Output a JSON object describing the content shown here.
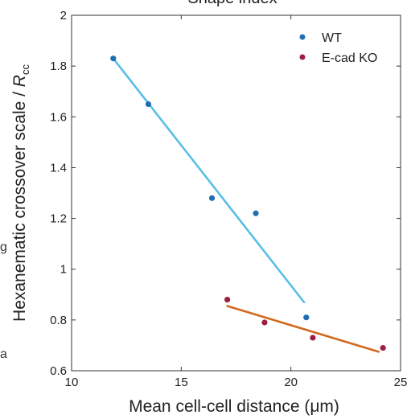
{
  "chart_data": {
    "type": "scatter",
    "title": "Shape index",
    "xlabel": "Mean cell-cell distance (μm)",
    "ylabel_main": "Hexanematic crossover scale / ",
    "ylabel_var": "R",
    "ylabel_sub": "cc",
    "xlim": [
      10,
      25
    ],
    "ylim": [
      0.6,
      2
    ],
    "x_ticks": [
      10,
      15,
      20,
      25
    ],
    "y_ticks": [
      0.6,
      0.8,
      1,
      1.2,
      1.4,
      1.6,
      1.8,
      2
    ],
    "y_tick_labels": [
      "0.6",
      "0.8",
      "1",
      "1.2",
      "1.4",
      "1.6",
      "1.8",
      "2"
    ],
    "legend_position": "top-right",
    "left_edge_fragments": [
      "g",
      "a"
    ],
    "series": [
      {
        "name": "WT",
        "marker_color": "#1f6fb2",
        "line_color": "#56bfe6",
        "points": [
          {
            "x": 11.9,
            "y": 1.83
          },
          {
            "x": 13.5,
            "y": 1.65
          },
          {
            "x": 16.4,
            "y": 1.28
          },
          {
            "x": 18.4,
            "y": 1.22
          },
          {
            "x": 20.7,
            "y": 0.81
          }
        ],
        "fit": [
          {
            "x": 11.9,
            "y": 1.83
          },
          {
            "x": 20.6,
            "y": 0.87
          }
        ]
      },
      {
        "name": "E-cad KO",
        "marker_color": "#9e1f3f",
        "line_color": "#d2691e",
        "points": [
          {
            "x": 17.1,
            "y": 0.88
          },
          {
            "x": 18.8,
            "y": 0.79
          },
          {
            "x": 21.0,
            "y": 0.73
          },
          {
            "x": 24.2,
            "y": 0.69
          }
        ],
        "fit": [
          {
            "x": 17.1,
            "y": 0.855
          },
          {
            "x": 24.0,
            "y": 0.675
          }
        ]
      }
    ]
  }
}
